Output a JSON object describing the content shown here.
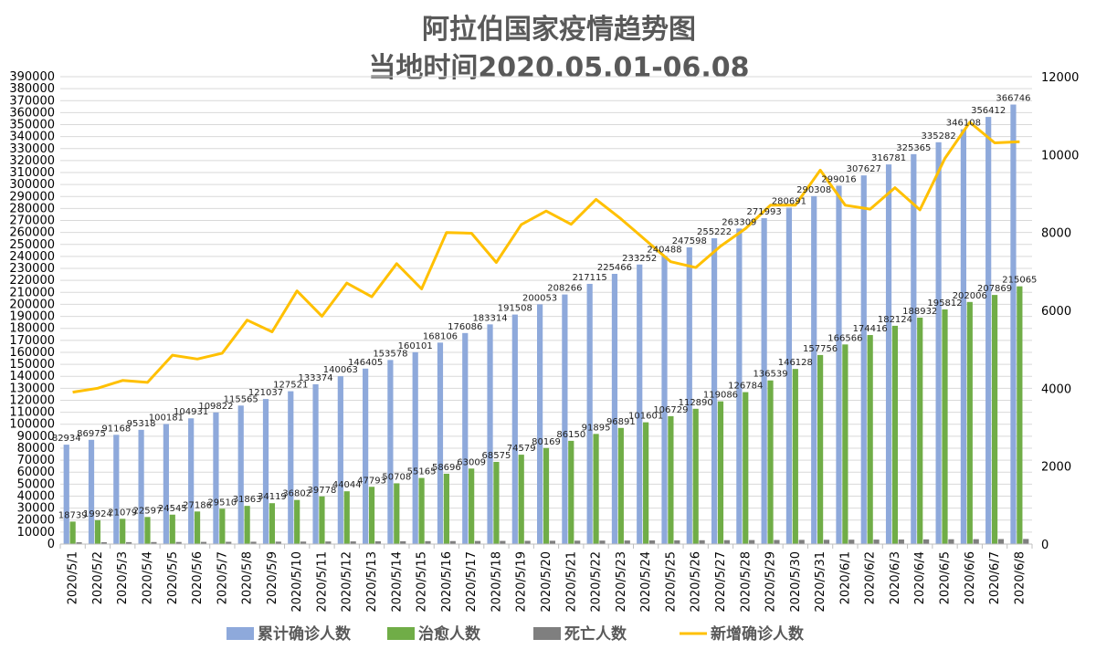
{
  "chart_data": {
    "type": "bar",
    "title": "阿拉伯国家疫情趋势图",
    "subtitle": "当地时间2020.05.01-06.08",
    "categories": [
      "2020/5/1",
      "2020/5/2",
      "2020/5/3",
      "2020/5/4",
      "2020/5/5",
      "2020/5/6",
      "2020/5/7",
      "2020/5/8",
      "2020/5/9",
      "2020/5/10",
      "2020/5/11",
      "2020/5/12",
      "2020/5/13",
      "2020/5/14",
      "2020/5/15",
      "2020/5/16",
      "2020/5/17",
      "2020/5/18",
      "2020/5/19",
      "2020/5/20",
      "2020/5/21",
      "2020/5/22",
      "2020/5/23",
      "2020/5/24",
      "2020/5/25",
      "2020/5/26",
      "2020/5/27",
      "2020/5/28",
      "2020/5/29",
      "2020/5/30",
      "2020/5/31",
      "2020/6/1",
      "2020/6/2",
      "2020/6/3",
      "2020/6/4",
      "2020/6/5",
      "2020/6/6",
      "2020/6/7",
      "2020/6/8"
    ],
    "series": [
      {
        "name": "累计确诊人数",
        "axis": "left",
        "kind": "bar",
        "color": "#8EA9DB",
        "labels": true,
        "values": [
          82934,
          86975,
          91168,
          95318,
          100181,
          104931,
          109822,
          115565,
          121037,
          127521,
          133374,
          140063,
          146405,
          153578,
          160101,
          168106,
          176086,
          183314,
          191508,
          200053,
          208266,
          217115,
          225466,
          233252,
          240488,
          247598,
          255222,
          263309,
          271993,
          280691,
          290308,
          299016,
          307627,
          316781,
          325365,
          335282,
          346108,
          356412,
          366746
        ]
      },
      {
        "name": "治愈人数",
        "axis": "left",
        "kind": "bar",
        "color": "#70AD47",
        "labels": true,
        "values": [
          18739,
          19924,
          21079,
          22597,
          24545,
          27186,
          29510,
          31863,
          34119,
          36802,
          39778,
          44044,
          47793,
          50708,
          55165,
          58696,
          63009,
          68575,
          74579,
          80169,
          86150,
          91895,
          96891,
          101601,
          106729,
          112890,
          119086,
          126784,
          136539,
          146128,
          157756,
          166566,
          174416,
          182124,
          188932,
          195812,
          202006,
          207869,
          215065
        ]
      },
      {
        "name": "死亡人数",
        "axis": "left",
        "kind": "bar",
        "color": "#7F7F7F",
        "labels": false,
        "values": [
          1500,
          1560,
          1620,
          1690,
          1760,
          1830,
          1900,
          1960,
          2020,
          2090,
          2150,
          2230,
          2300,
          2370,
          2430,
          2500,
          2570,
          2640,
          2700,
          2770,
          2840,
          2910,
          2990,
          3060,
          3130,
          3200,
          3270,
          3340,
          3420,
          3500,
          3580,
          3660,
          3740,
          3830,
          3920,
          4010,
          4090,
          4170,
          4250
        ]
      },
      {
        "name": "新增确诊人数",
        "axis": "right",
        "kind": "line",
        "color": "#FFC000",
        "values": [
          3900,
          4000,
          4200,
          4150,
          4850,
          4750,
          4900,
          5750,
          5450,
          6500,
          5850,
          6700,
          6350,
          7200,
          6550,
          8000,
          7980,
          7230,
          8200,
          8550,
          8210,
          8850,
          8350,
          7800,
          7250,
          7100,
          7650,
          8100,
          8700,
          8700,
          9600,
          8700,
          8600,
          9150,
          8580,
          9900,
          10830,
          10300,
          10330
        ]
      }
    ],
    "y_left": {
      "min": 0,
      "max": 390000,
      "step": 10000
    },
    "y_right": {
      "min": 0,
      "max": 12000,
      "step": 2000
    },
    "legend_position": "bottom",
    "grid": true
  }
}
